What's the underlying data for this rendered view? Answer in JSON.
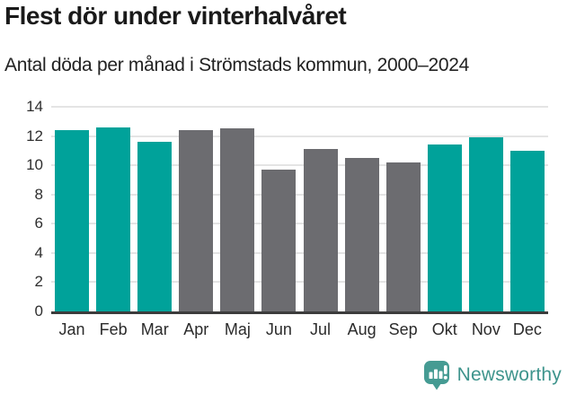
{
  "header": {
    "title": "Flest dör under vinterhalvåret",
    "subtitle": "Antal döda per månad i Strömstads kommun, 2000–2024"
  },
  "chart_data": {
    "type": "bar",
    "title": "Flest dör under vinterhalvåret",
    "subtitle": "Antal döda per månad i Strömstads kommun, 2000–2024",
    "categories": [
      "Jan",
      "Feb",
      "Mar",
      "Apr",
      "Maj",
      "Jun",
      "Jul",
      "Aug",
      "Sep",
      "Okt",
      "Nov",
      "Dec"
    ],
    "values": [
      12.4,
      12.6,
      11.6,
      12.4,
      12.5,
      9.7,
      11.1,
      10.5,
      10.2,
      11.4,
      11.9,
      11.0
    ],
    "bar_palette": [
      "teal",
      "teal",
      "teal",
      "gray",
      "gray",
      "gray",
      "gray",
      "gray",
      "gray",
      "teal",
      "teal",
      "teal"
    ],
    "colors": {
      "teal": "#00A29A",
      "gray": "#6C6C70"
    },
    "highlight_meaning": "winter-half-year months in teal, summer-half-year months in gray",
    "xlabel": "",
    "ylabel": "",
    "ylim": [
      0,
      14
    ],
    "yticks": [
      0,
      2,
      4,
      6,
      8,
      10,
      12,
      14
    ],
    "grid": true,
    "legend": "none"
  },
  "footer": {
    "brand": "Newsworthy",
    "logo_icon": "bar-chart-speech-bubble-icon",
    "icon_color": "#459B93",
    "brand_color": "#3E948C"
  }
}
